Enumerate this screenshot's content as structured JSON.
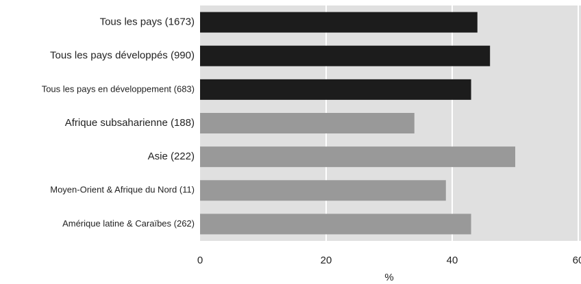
{
  "chart_data": {
    "type": "bar",
    "orientation": "horizontal",
    "categories": [
      "Tous les pays (1673)",
      "Tous les pays développés (990)",
      "Tous les pays en développement (683)",
      "Afrique subsaharienne (188)",
      "Asie (222)",
      "Moyen-Orient & Afrique du Nord (11)",
      "Amérique latine & Caraïbes (262)"
    ],
    "values": [
      44,
      46,
      43,
      34,
      50,
      39,
      43
    ],
    "colors": [
      "#1c1c1c",
      "#1c1c1c",
      "#1c1c1c",
      "#999999",
      "#999999",
      "#999999",
      "#999999"
    ],
    "xlabel": "%",
    "xlim": [
      0,
      60
    ],
    "xticks": [
      0,
      20,
      40,
      60
    ],
    "grid": true
  }
}
